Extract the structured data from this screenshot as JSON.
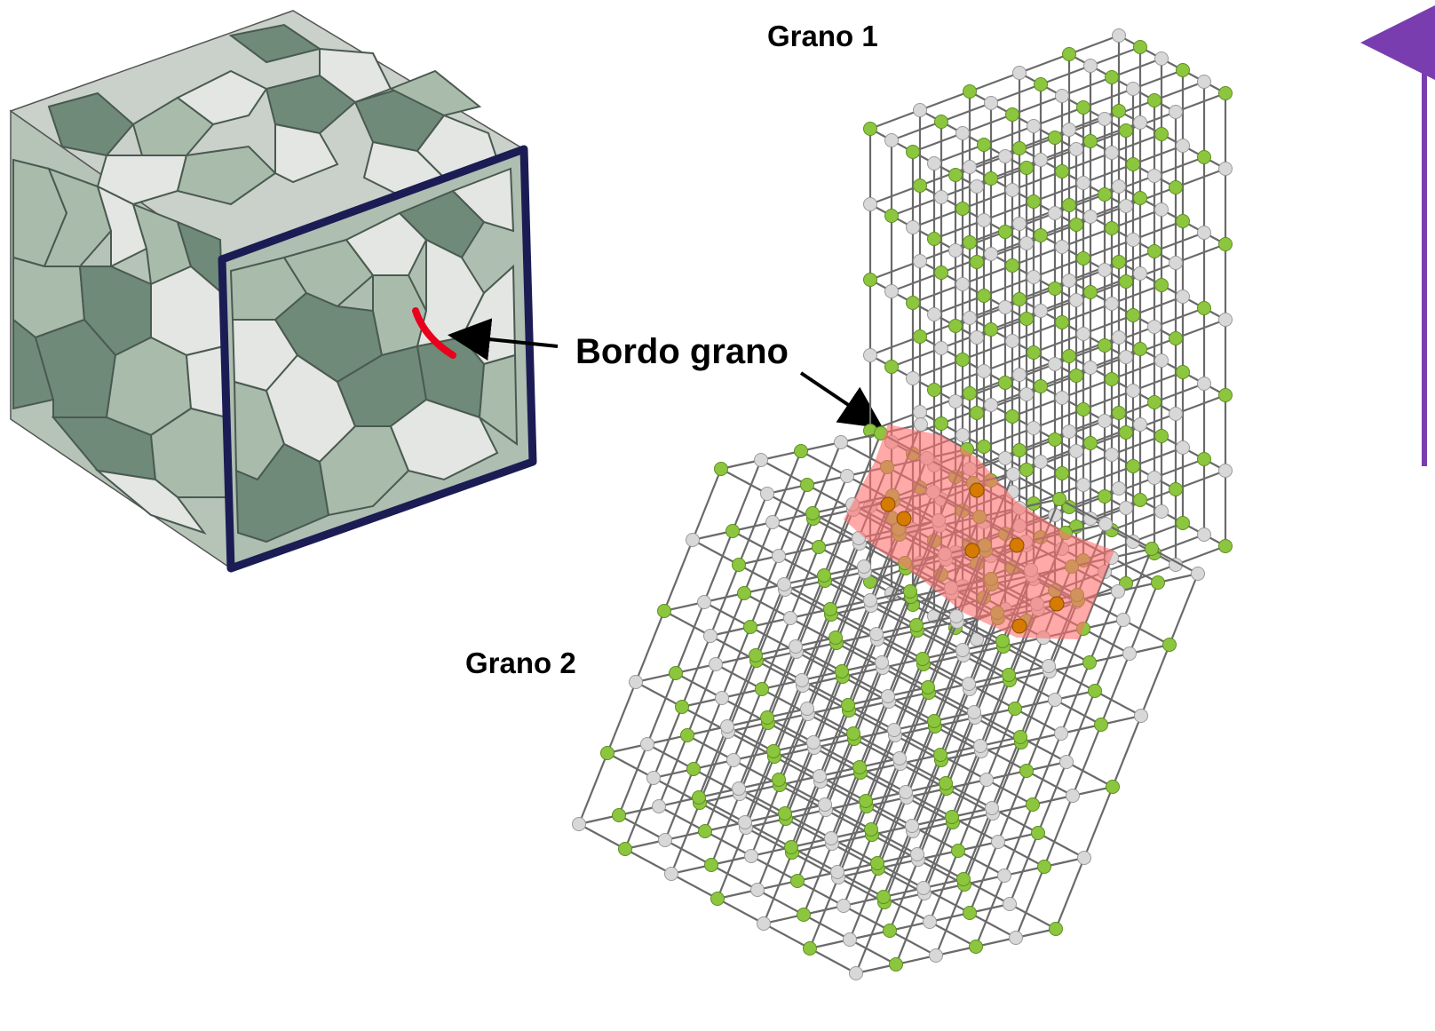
{
  "labels": {
    "grain1": "Grano 1",
    "grain2": "Grano 2",
    "boundary": "Bordo grano"
  },
  "colors": {
    "atom_green": "#8cc63f",
    "atom_gray": "#d8d8d8",
    "atom_orange": "#d77a00",
    "boundary_fill": "#ff6f6f",
    "boundary_line": "#e8001c",
    "frame": "#1c1c55",
    "arrow_purple": "#7a3db0",
    "grain_dark": "#6f8a79",
    "grain_mid": "#a9bcab",
    "grain_light": "#e3e6e3"
  },
  "icons": {
    "microstructure": "polycrystal-cube-icon",
    "lattice": "cubic-lattice-icon"
  }
}
